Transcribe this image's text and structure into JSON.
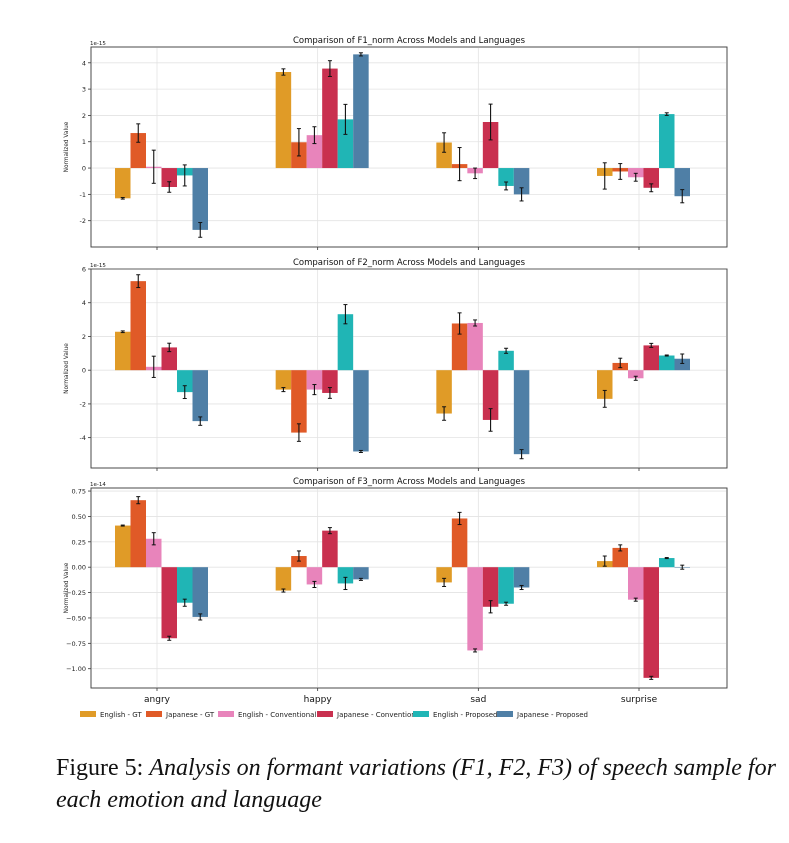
{
  "chart_data": [
    {
      "type": "bar",
      "title": "Comparison of F1_norm Across Models and Languages",
      "xlabel": "",
      "ylabel": "Normalized Value",
      "scale_label": "1e-15",
      "ylim": [
        -3.0,
        4.6
      ],
      "yticks": [
        -2,
        -1,
        0,
        1,
        2,
        3,
        4
      ],
      "ytick_labels": [
        "-2",
        "-1",
        "0",
        "1",
        "2",
        "3",
        "4"
      ],
      "grid": true,
      "categories": [
        "angry",
        "happy",
        "sad",
        "surprise"
      ],
      "series": [
        {
          "name": "English - GT",
          "values": [
            -1.15,
            3.65,
            0.97,
            -0.3
          ],
          "errors": [
            0.03,
            0.12,
            0.37,
            0.5
          ]
        },
        {
          "name": "Japanese - GT",
          "values": [
            1.33,
            0.98,
            0.15,
            -0.13
          ],
          "errors": [
            0.35,
            0.52,
            0.63,
            0.3
          ]
        },
        {
          "name": "English - Conventional",
          "values": [
            0.05,
            1.25,
            -0.2,
            -0.35
          ],
          "errors": [
            0.63,
            0.32,
            0.2,
            0.15
          ]
        },
        {
          "name": "Japanese - Conventional",
          "values": [
            -0.72,
            3.78,
            1.75,
            -0.75
          ],
          "errors": [
            0.2,
            0.3,
            0.68,
            0.15
          ]
        },
        {
          "name": "English - Proposed",
          "values": [
            -0.28,
            1.85,
            -0.68,
            2.05
          ],
          "errors": [
            0.4,
            0.57,
            0.15,
            0.05
          ]
        },
        {
          "name": "Japanese - Proposed",
          "values": [
            -2.35,
            4.32,
            -1.0,
            -1.07
          ],
          "errors": [
            0.28,
            0.06,
            0.25,
            0.25
          ]
        }
      ]
    },
    {
      "type": "bar",
      "title": "Comparison of F2_norm Across Models and Languages",
      "xlabel": "",
      "ylabel": "Normalized Value",
      "scale_label": "1e-15",
      "ylim": [
        -5.8,
        6.0
      ],
      "yticks": [
        -4,
        -2,
        0,
        2,
        4,
        6
      ],
      "ytick_labels": [
        "-4",
        "-2",
        "0",
        "2",
        "4",
        "6"
      ],
      "grid": true,
      "categories": [
        "angry",
        "happy",
        "sad",
        "surprise"
      ],
      "series": [
        {
          "name": "English - GT",
          "values": [
            2.28,
            -1.15,
            -2.57,
            -1.7
          ],
          "errors": [
            0.05,
            0.12,
            0.4,
            0.5
          ]
        },
        {
          "name": "Japanese - GT",
          "values": [
            5.28,
            -3.7,
            2.77,
            0.43
          ],
          "errors": [
            0.38,
            0.52,
            0.63,
            0.28
          ]
        },
        {
          "name": "English - Conventional",
          "values": [
            0.2,
            -1.15,
            2.8,
            -0.48
          ],
          "errors": [
            0.63,
            0.3,
            0.18,
            0.12
          ]
        },
        {
          "name": "Japanese - Conventional",
          "values": [
            1.35,
            -1.35,
            -2.95,
            1.47
          ],
          "errors": [
            0.25,
            0.32,
            0.67,
            0.12
          ]
        },
        {
          "name": "English - Proposed",
          "values": [
            -1.3,
            3.32,
            1.15,
            0.87
          ],
          "errors": [
            0.38,
            0.57,
            0.15,
            0.03
          ]
        },
        {
          "name": "Japanese - Proposed",
          "values": [
            -3.02,
            -4.82,
            -4.98,
            0.68
          ],
          "errors": [
            0.25,
            0.06,
            0.27,
            0.28
          ]
        }
      ]
    },
    {
      "type": "bar",
      "title": "Comparison of F3_norm Across Models and Languages",
      "xlabel": "",
      "ylabel": "Normalized Value",
      "scale_label": "1e-14",
      "ylim": [
        -1.19,
        0.78
      ],
      "yticks": [
        -1.0,
        -0.75,
        -0.5,
        -0.25,
        0.0,
        0.25,
        0.5,
        0.75
      ],
      "ytick_labels": [
        "−1.00",
        "−0.75",
        "−0.50",
        "−0.25",
        "0.00",
        "0.25",
        "0.50",
        "0.75"
      ],
      "grid": true,
      "categories": [
        "angry",
        "happy",
        "sad",
        "surprise"
      ],
      "series": [
        {
          "name": "English - GT",
          "values": [
            0.41,
            -0.23,
            -0.15,
            0.06
          ],
          "errors": [
            0.005,
            0.015,
            0.04,
            0.05
          ]
        },
        {
          "name": "Japanese - GT",
          "values": [
            0.66,
            0.11,
            0.48,
            0.19
          ],
          "errors": [
            0.035,
            0.05,
            0.06,
            0.03
          ]
        },
        {
          "name": "English - Conventional",
          "values": [
            0.28,
            -0.17,
            -0.82,
            -0.32
          ],
          "errors": [
            0.06,
            0.03,
            0.015,
            0.015
          ]
        },
        {
          "name": "Japanese - Conventional",
          "values": [
            -0.7,
            0.36,
            -0.39,
            -1.09
          ],
          "errors": [
            0.02,
            0.03,
            0.06,
            0.015
          ]
        },
        {
          "name": "English - Proposed",
          "values": [
            -0.35,
            -0.16,
            -0.36,
            0.09
          ],
          "errors": [
            0.035,
            0.06,
            0.015,
            0.005
          ]
        },
        {
          "name": "Japanese - Proposed",
          "values": [
            -0.49,
            -0.12,
            -0.2,
            0.0
          ],
          "errors": [
            0.03,
            0.01,
            0.02,
            0.02
          ]
        }
      ]
    }
  ],
  "legend": {
    "placement": "bottom",
    "entries": [
      {
        "label": "English - GT",
        "color": "#e09b27"
      },
      {
        "label": "Japanese - GT",
        "color": "#e05a27"
      },
      {
        "label": "English - Conventional",
        "color": "#e884bb"
      },
      {
        "label": "Japanese - Conventional",
        "color": "#c9304f"
      },
      {
        "label": "English - Proposed",
        "color": "#20b5b5"
      },
      {
        "label": "Japanese - Proposed",
        "color": "#4f7fa6"
      }
    ]
  },
  "caption": {
    "label": "Figure 5:",
    "text": "Analysis on formant variations (F1, F2, F3) of speech sample for each emotion and language"
  }
}
